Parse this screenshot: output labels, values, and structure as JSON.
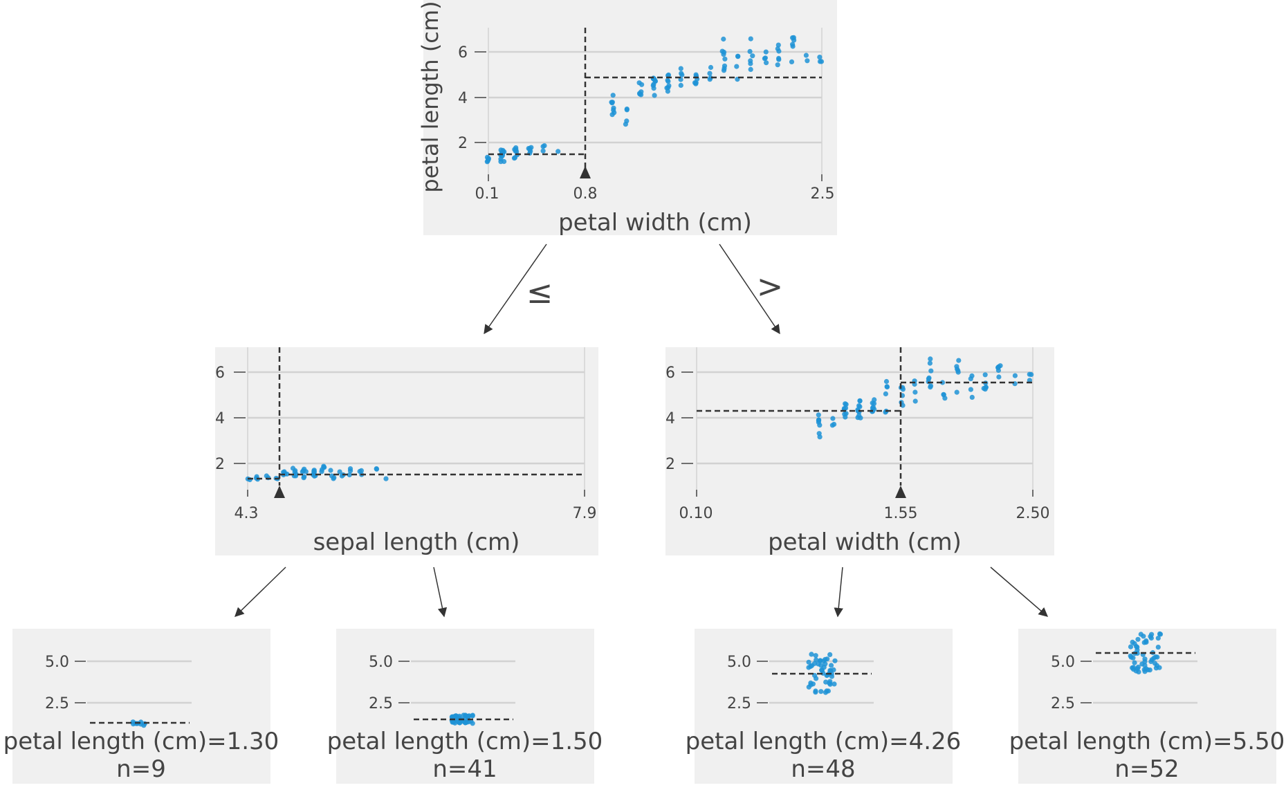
{
  "diagram": {
    "operators": {
      "left": "≤",
      "right": ">"
    },
    "target_label": "petal length (cm)",
    "root": {
      "y_label": "petal length (cm)",
      "x_label": "petal width (cm)",
      "x_ticks": [
        "0.1",
        "0.8",
        "2.5"
      ],
      "y_ticks": [
        "2",
        "4",
        "6"
      ],
      "split_value": 0.8,
      "mean_left": 1.46,
      "mean_right": 4.91
    },
    "left_split": {
      "x_label": "sepal length (cm)",
      "x_ticks": [
        "4.3",
        "7.9"
      ],
      "y_ticks": [
        "2",
        "4",
        "6"
      ],
      "split_value": 4.7,
      "mean_left": 1.3,
      "mean_right": 1.5
    },
    "right_split": {
      "x_label": "petal width (cm)",
      "x_ticks": [
        "0.10",
        "1.55",
        "2.50"
      ],
      "y_ticks": [
        "2",
        "4",
        "6"
      ],
      "split_value": 1.55,
      "mean_left": 4.26,
      "mean_right": 5.5
    },
    "leaves": [
      {
        "label": "petal length (cm)=1.30",
        "n_label": "n=9",
        "y_ticks": [
          "5.0",
          "2.5"
        ],
        "mean": 1.3,
        "n": 9
      },
      {
        "label": "petal length (cm)=1.50",
        "n_label": "n=41",
        "y_ticks": [
          "5.0",
          "2.5"
        ],
        "mean": 1.5,
        "n": 41
      },
      {
        "label": "petal length (cm)=4.26",
        "n_label": "n=48",
        "y_ticks": [
          "5.0",
          "2.5"
        ],
        "mean": 4.26,
        "n": 48
      },
      {
        "label": "petal length (cm)=5.50",
        "n_label": "n=52",
        "y_ticks": [
          "5.0",
          "2.5"
        ],
        "mean": 5.5,
        "n": 52
      }
    ],
    "colors": {
      "panel": "#f0f0f0",
      "grid": "#d2d2d2",
      "points": "#1f93d6",
      "lines": "#333333",
      "text": "#444444"
    }
  }
}
